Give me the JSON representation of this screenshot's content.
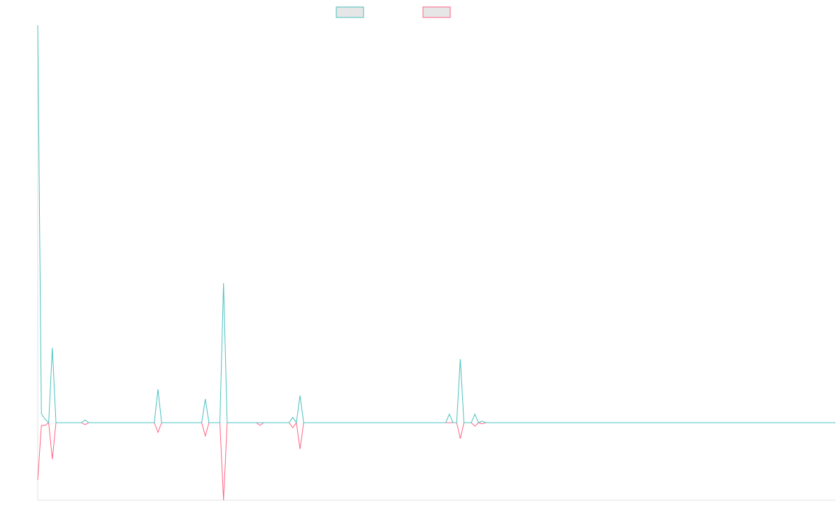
{
  "chart_data": {
    "type": "line",
    "categories": [
      null,
      null,
      null,
      null,
      null,
      null,
      null,
      null,
      null,
      null,
      null,
      null,
      null,
      null,
      null,
      null,
      null,
      null,
      null,
      null,
      null,
      null,
      null,
      null,
      null,
      null,
      null,
      null,
      null,
      null,
      null,
      null,
      null,
      null,
      null,
      null,
      null,
      null,
      null,
      null,
      null,
      null,
      null,
      null,
      null,
      null,
      null,
      null,
      null,
      null,
      null,
      null,
      null,
      null,
      null,
      null,
      null,
      null,
      null,
      null,
      null,
      null,
      null,
      null,
      null,
      null,
      null,
      null,
      null,
      null,
      null,
      null,
      null,
      null,
      null,
      null,
      null,
      null,
      null,
      null,
      null,
      null,
      null,
      null,
      null,
      null,
      null,
      null,
      null,
      null,
      null,
      null,
      null,
      null,
      null,
      null,
      null,
      null,
      null,
      null,
      null,
      null,
      null,
      null,
      null,
      null,
      null,
      null,
      null,
      null,
      null,
      null,
      null,
      null,
      null,
      null,
      null,
      null,
      null,
      null,
      null,
      null,
      null,
      null,
      null,
      null,
      null,
      null,
      null,
      null,
      null,
      null,
      null,
      null,
      null,
      null,
      null,
      null,
      null,
      null,
      null,
      null,
      null,
      null,
      null,
      null,
      null,
      null,
      null,
      null,
      null,
      null,
      null,
      null,
      null,
      null,
      null,
      null,
      null,
      null,
      null,
      null,
      null,
      null,
      null,
      null,
      null,
      null,
      null,
      null,
      null,
      null,
      null,
      null,
      null,
      null,
      null,
      null,
      null,
      null,
      null,
      null,
      null,
      null,
      null,
      null,
      null,
      null,
      null,
      null,
      null,
      null,
      null,
      null,
      null,
      null,
      null,
      null,
      null,
      null,
      null,
      null,
      null,
      null,
      null,
      null,
      null,
      null,
      null,
      null,
      null,
      null,
      null,
      null,
      null,
      null,
      null,
      null,
      null,
      null
    ],
    "series": [
      {
        "color": "#4bc0c0",
        "values": [
          102.5,
          2.3,
          0.9,
          0,
          19.3,
          0,
          0,
          0,
          0,
          0,
          0,
          0,
          0,
          0.7,
          0,
          0,
          0,
          0,
          0,
          0,
          0,
          0,
          0,
          0,
          0,
          0,
          0,
          0,
          0,
          0,
          0,
          0,
          0,
          8.6,
          0,
          0,
          0,
          0,
          0,
          0,
          0,
          0,
          0,
          0,
          0,
          0,
          6.1,
          0,
          0,
          0,
          0,
          36,
          0,
          0,
          0,
          0,
          0,
          0,
          0,
          0,
          0,
          0,
          0,
          0,
          0,
          0,
          0,
          0,
          0,
          0,
          1.4,
          0,
          7,
          0,
          0,
          0,
          0,
          0,
          0,
          0,
          0,
          0,
          0,
          0,
          0,
          0,
          0,
          0,
          0,
          0,
          0,
          0,
          0,
          0,
          0,
          0,
          0,
          0,
          0,
          0,
          0,
          0,
          0,
          0,
          0,
          0,
          0,
          0,
          0,
          0,
          0,
          0,
          0,
          2.2,
          0,
          0,
          16.4,
          0,
          0,
          0,
          2.2,
          0,
          0.4,
          0,
          0,
          0,
          0,
          0,
          0,
          0,
          0,
          0,
          0,
          0,
          0,
          0,
          0,
          0,
          0,
          0,
          0,
          0,
          0,
          0,
          0,
          0,
          0,
          0,
          0,
          0,
          0,
          0,
          0,
          0,
          0,
          0,
          0,
          0,
          0,
          0,
          0,
          0,
          0,
          0,
          0,
          0,
          0,
          0,
          0,
          0,
          0,
          0,
          0,
          0,
          0,
          0,
          0,
          0,
          0,
          0,
          0,
          0,
          0,
          0,
          0,
          0,
          0,
          0,
          0,
          0,
          0,
          0,
          0,
          0,
          0,
          0,
          0,
          0,
          0,
          0,
          0,
          0,
          0,
          0,
          0,
          0,
          0,
          0,
          0,
          0,
          0,
          0,
          0,
          0,
          0,
          0,
          0,
          0,
          0,
          0
        ]
      },
      {
        "color": "#ff6384",
        "values": [
          -14.8,
          -0.7,
          -0.7,
          0,
          -9.4,
          0,
          0,
          0,
          0,
          0,
          0,
          0,
          0,
          -0.5,
          0,
          0,
          0,
          0,
          0,
          0,
          0,
          0,
          0,
          0,
          0,
          0,
          0,
          0,
          0,
          0,
          0,
          0,
          0,
          -2.5,
          0,
          0,
          0,
          0,
          0,
          0,
          0,
          0,
          0,
          0,
          0,
          0,
          -3.4,
          0,
          0,
          0,
          0,
          -20,
          0,
          0,
          0,
          0,
          0,
          0,
          0,
          0,
          0,
          -0.7,
          0,
          0,
          0,
          0,
          0,
          0,
          0,
          0,
          -1.3,
          0,
          -6.8,
          0,
          0,
          0,
          0,
          0,
          0,
          0,
          0,
          0,
          0,
          0,
          0,
          0,
          0,
          0,
          0,
          0,
          0,
          0,
          0,
          0,
          0,
          0,
          0,
          0,
          0,
          0,
          0,
          0,
          0,
          0,
          0,
          0,
          0,
          0,
          0,
          0,
          0,
          0,
          0,
          0,
          0,
          0,
          -4.1,
          0,
          0,
          0,
          -0.9,
          0,
          -0.3,
          0,
          0,
          0,
          0,
          0,
          0,
          0,
          0,
          0,
          0,
          0,
          0,
          0,
          0,
          0,
          0,
          0,
          0,
          0,
          0,
          0,
          0,
          0,
          0,
          0,
          0,
          0,
          0,
          0,
          0,
          0,
          0,
          0,
          0,
          0,
          0,
          0,
          0,
          0,
          0,
          0,
          0,
          0,
          0,
          0,
          0,
          0,
          0,
          0,
          0,
          0,
          0,
          0,
          0,
          0,
          0,
          0,
          0,
          0,
          0,
          0,
          0,
          0,
          0,
          0,
          0,
          0,
          0,
          0,
          0,
          0,
          0,
          0,
          0,
          0,
          0,
          0,
          0,
          0,
          0,
          0,
          0,
          0,
          0,
          0,
          0,
          0,
          0,
          0,
          0,
          0,
          0,
          0,
          0,
          0,
          0,
          0
        ]
      }
    ],
    "ylim": [
      -20,
      102.5
    ]
  }
}
